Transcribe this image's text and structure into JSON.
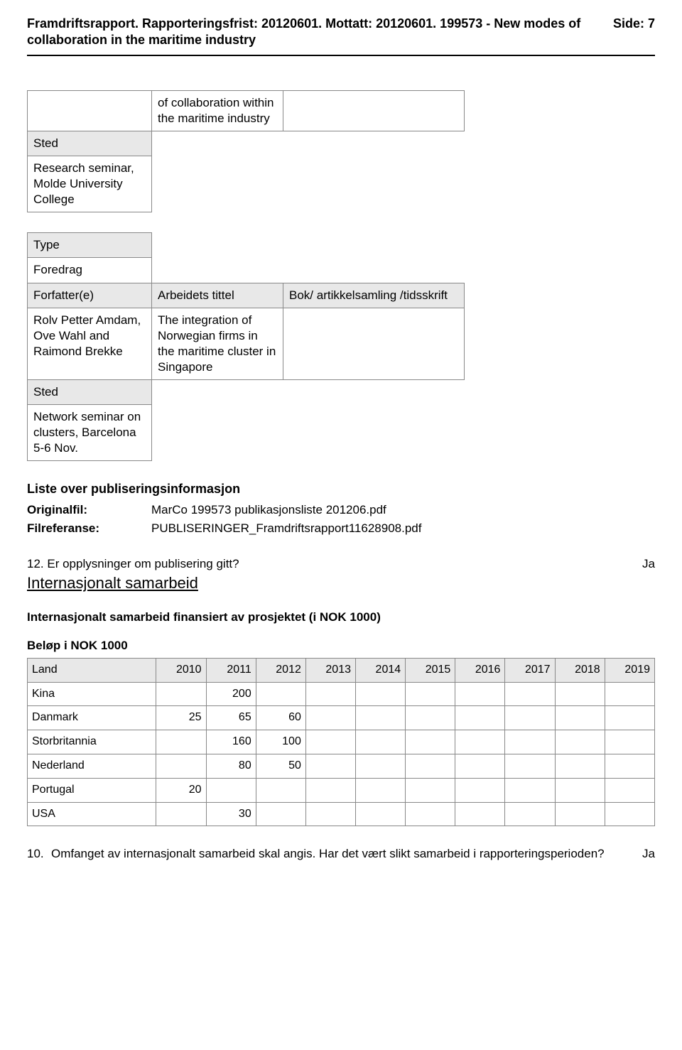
{
  "header": {
    "title_line": "Framdriftsrapport. Rapporteringsfrist: 20120601. Mottatt: 20120601. 199573 - New modes of collaboration in the maritime industry",
    "side_label": "Side: 7"
  },
  "block1": {
    "col2_row1": "of collaboration within the maritime industry",
    "sted_label": "Sted",
    "sted_value": "Research seminar, Molde University College"
  },
  "block2": {
    "type_label": "Type",
    "type_value": "Foredrag",
    "forfatter_label": "Forfatter(e)",
    "arbeid_label": "Arbeidets tittel",
    "bok_label": "Bok/ artikkelsamling /tidsskrift",
    "forfatter_value": "Rolv Petter Amdam, Ove Wahl and Raimond Brekke",
    "arbeid_value": "The integration of Norwegian firms in the maritime cluster in Singapore",
    "sted_label": "Sted",
    "sted_value": "Network seminar on clusters, Barcelona 5-6 Nov."
  },
  "pubinfo": {
    "heading": "Liste over publiseringsinformasjon",
    "originalfil_label": "Originalfil:",
    "originalfil_value": "MarCo 199573 publikasjonsliste 201206.pdf",
    "filref_label": "Filreferanse:",
    "filref_value": "PUBLISERINGER_Framdriftsrapport11628908.pdf"
  },
  "q12": {
    "text": "12. Er opplysninger om publisering gitt?",
    "answer": "Ja"
  },
  "intl": {
    "heading": "Internasjonalt samarbeid",
    "subheading": "Internasjonalt samarbeid finansiert av prosjektet (i NOK 1000)",
    "belop_label": "Beløp i NOK 1000",
    "columns": [
      "Land",
      "2010",
      "2011",
      "2012",
      "2013",
      "2014",
      "2015",
      "2016",
      "2017",
      "2018",
      "2019"
    ],
    "rows": [
      {
        "land": "Kina",
        "vals": [
          "",
          "200",
          "",
          "",
          "",
          "",
          "",
          "",
          "",
          ""
        ]
      },
      {
        "land": "Danmark",
        "vals": [
          "25",
          "65",
          "60",
          "",
          "",
          "",
          "",
          "",
          "",
          ""
        ]
      },
      {
        "land": "Storbritannia",
        "vals": [
          "",
          "160",
          "100",
          "",
          "",
          "",
          "",
          "",
          "",
          ""
        ]
      },
      {
        "land": "Nederland",
        "vals": [
          "",
          "80",
          "50",
          "",
          "",
          "",
          "",
          "",
          "",
          ""
        ]
      },
      {
        "land": "Portugal",
        "vals": [
          "20",
          "",
          "",
          "",
          "",
          "",
          "",
          "",
          "",
          ""
        ]
      },
      {
        "land": "USA",
        "vals": [
          "",
          "30",
          "",
          "",
          "",
          "",
          "",
          "",
          "",
          ""
        ]
      }
    ]
  },
  "q10": {
    "num": "10.",
    "text": "Omfanget av internasjonalt samarbeid skal angis. Har det vært slikt samarbeid i rapporteringsperioden?",
    "answer": "Ja"
  }
}
